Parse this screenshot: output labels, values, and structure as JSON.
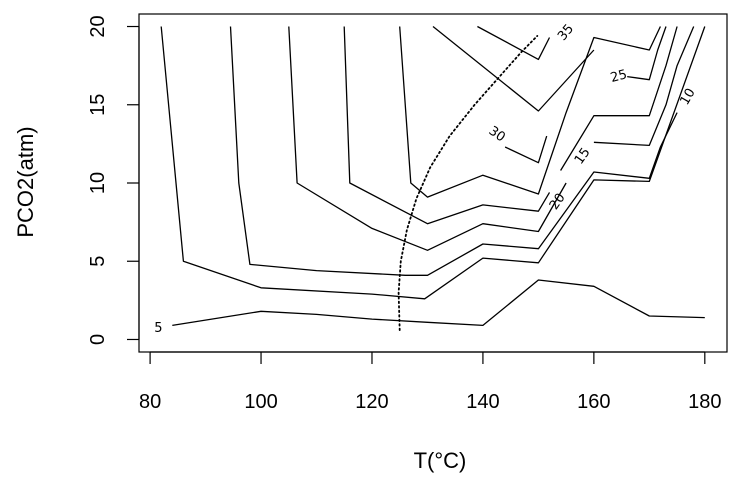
{
  "chart_data": {
    "type": "line",
    "subtype": "contour",
    "title": "",
    "xlabel": "T(°C)",
    "ylabel": "PCO2(atm)",
    "xlim": [
      78,
      184
    ],
    "ylim": [
      -0.8,
      20.8
    ],
    "x_ticks": [
      80,
      100,
      120,
      140,
      160,
      180
    ],
    "y_ticks": [
      0,
      5,
      10,
      15,
      20
    ],
    "grid": false,
    "legend": "none",
    "line_color": "#000000",
    "contours": [
      {
        "label": "5",
        "label_at": [
          81.5,
          0.7
        ],
        "label_angle": 0,
        "points": [
          [
            84,
            0.9
          ],
          [
            100,
            1.8
          ],
          [
            110,
            1.6
          ],
          [
            120,
            1.3
          ],
          [
            130,
            1.1
          ],
          [
            140,
            0.9
          ],
          [
            150,
            3.8
          ],
          [
            160,
            3.4
          ],
          [
            170,
            1.5
          ],
          [
            180,
            1.4
          ]
        ]
      },
      {
        "label": "",
        "label_at": null,
        "label_angle": 0,
        "points": [
          [
            82,
            20
          ],
          [
            86,
            5
          ],
          [
            100,
            3.3
          ],
          [
            120,
            2.9
          ],
          [
            129.5,
            2.6
          ],
          [
            140,
            5.2
          ],
          [
            150,
            4.9
          ],
          [
            160,
            10.2
          ],
          [
            170,
            10.1
          ],
          [
            180,
            20
          ]
        ]
      },
      {
        "label": "",
        "label_at": null,
        "label_angle": 0,
        "points": [
          [
            94.5,
            20
          ],
          [
            96,
            10
          ],
          [
            98,
            4.8
          ],
          [
            110,
            4.4
          ],
          [
            126,
            4.1
          ],
          [
            130,
            4.1
          ],
          [
            140,
            6.1
          ],
          [
            150,
            5.8
          ],
          [
            160,
            10.7
          ],
          [
            170,
            10.3
          ],
          [
            172,
            12.3
          ],
          [
            175,
            14.5
          ]
        ]
      },
      {
        "label": "10",
        "label_at": [
          177,
          15.5
        ],
        "label_angle": -60,
        "points": [
          [
            105,
            20
          ],
          [
            106.5,
            10
          ],
          [
            120,
            7.1
          ],
          [
            130,
            5.7
          ],
          [
            140,
            7.4
          ],
          [
            150,
            6.9
          ],
          [
            155,
            10
          ]
        ]
      },
      {
        "label": "15",
        "label_at": [
          158,
          11.7
        ],
        "label_angle": -55,
        "points": [
          [
            160,
            12.6
          ],
          [
            170,
            12.4
          ],
          [
            173,
            15
          ],
          [
            175,
            17.5
          ],
          [
            178,
            20
          ]
        ]
      },
      {
        "label": "20",
        "label_at": [
          153.5,
          8.8
        ],
        "label_angle": -55,
        "points": [
          [
            115,
            20
          ],
          [
            116,
            10
          ],
          [
            130,
            7.4
          ],
          [
            140,
            8.6
          ],
          [
            150,
            8.2
          ],
          [
            152,
            9.4
          ]
        ]
      },
      {
        "label": "",
        "label_at": null,
        "label_angle": 0,
        "points": [
          [
            154,
            10.8
          ],
          [
            160,
            14.3
          ],
          [
            170,
            14.3
          ],
          [
            173,
            17.5
          ],
          [
            175,
            20
          ]
        ]
      },
      {
        "label": "25",
        "label_at": [
          164.5,
          16.8
        ],
        "label_angle": -15,
        "points": [
          [
            166,
            16.8
          ],
          [
            170,
            16.6
          ],
          [
            171.5,
            18.5
          ],
          [
            173,
            20
          ]
        ]
      },
      {
        "label": "",
        "label_at": null,
        "label_angle": 0,
        "points": [
          [
            125,
            20
          ],
          [
            127,
            10
          ],
          [
            130,
            9.1
          ],
          [
            140,
            10.5
          ],
          [
            150,
            9.3
          ],
          [
            155,
            14.5
          ],
          [
            160,
            19.3
          ],
          [
            170,
            18.5
          ],
          [
            172,
            20
          ]
        ]
      },
      {
        "label": "30",
        "label_at": [
          142.5,
          13.1
        ],
        "label_angle": 35,
        "points": [
          [
            144,
            12.3
          ],
          [
            150,
            11.3
          ],
          [
            151.5,
            13
          ]
        ]
      },
      {
        "label": "",
        "label_at": null,
        "label_angle": 0,
        "points": [
          [
            131,
            20
          ],
          [
            150,
            14.6
          ],
          [
            160,
            18.5
          ]
        ]
      },
      {
        "label": "35",
        "label_at": [
          155,
          19.6
        ],
        "label_angle": -50,
        "points": [
          [
            139,
            20
          ],
          [
            150,
            17.9
          ],
          [
            152,
            19.3
          ]
        ]
      }
    ],
    "dotted_curve": {
      "points": [
        [
          125,
          0.6
        ],
        [
          124.8,
          3
        ],
        [
          125.2,
          5
        ],
        [
          126.3,
          7
        ],
        [
          128,
          9
        ],
        [
          130.5,
          11
        ],
        [
          134,
          13
        ],
        [
          138.5,
          15
        ],
        [
          143.5,
          17
        ],
        [
          147,
          18.4
        ],
        [
          149.8,
          19.4
        ]
      ]
    }
  }
}
